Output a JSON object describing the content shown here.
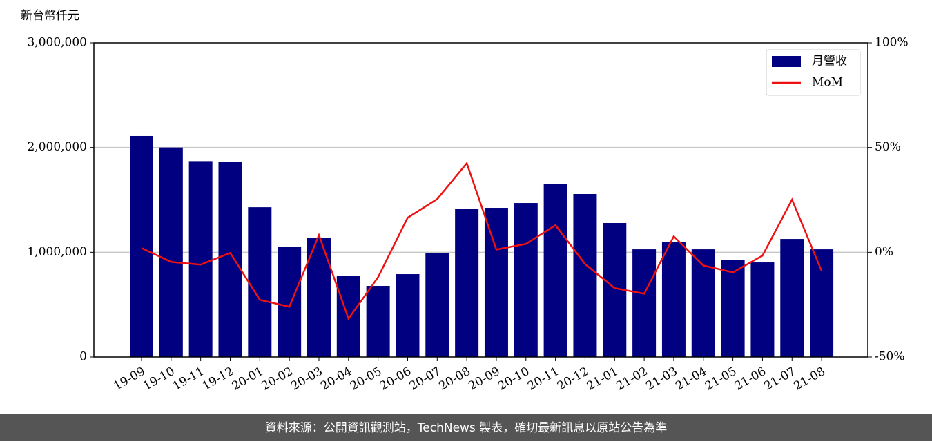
{
  "chart_data": {
    "type": "bar_line",
    "y_label": "新台幣仟元",
    "categories": [
      "19-09",
      "19-10",
      "19-11",
      "19-12",
      "20-01",
      "20-02",
      "20-03",
      "20-04",
      "20-05",
      "20-06",
      "20-07",
      "20-08",
      "20-09",
      "20-10",
      "20-11",
      "20-12",
      "21-01",
      "21-02",
      "21-03",
      "21-04",
      "21-05",
      "21-06",
      "21-07",
      "21-08"
    ],
    "series": [
      {
        "name": "月營收",
        "color": "#000080",
        "type": "bar",
        "values": [
          2110000,
          2000000,
          1870000,
          1866000,
          1430000,
          1055000,
          1140000,
          778000,
          679000,
          791000,
          989000,
          1411000,
          1424000,
          1470000,
          1655000,
          1556000,
          1279000,
          1028000,
          1101000,
          1028000,
          923000,
          903000,
          1127000,
          1028000
        ]
      },
      {
        "name": "MoM",
        "color": "#ee1111",
        "type": "line",
        "axis": "y2",
        "values": [
          2.0,
          -4.6,
          -5.9,
          -0.3,
          -22.7,
          -26.0,
          8.2,
          -31.7,
          -11.9,
          16.5,
          25.4,
          42.5,
          1.3,
          4.0,
          12.9,
          -5.6,
          -17.1,
          -19.8,
          7.6,
          -6.3,
          -9.6,
          -1.6,
          25.1,
          -8.9
        ]
      }
    ],
    "ylim": [
      0,
      3000000
    ],
    "yticks": [
      0,
      {
        "value": 1000000,
        "label": "1,000,000"
      },
      {
        "value": 2000000,
        "label": "2,000,000"
      },
      {
        "value": 3000000,
        "label": "3,000,000"
      }
    ],
    "y2lim": [
      -50,
      100
    ],
    "y2ticks": [
      {
        "value": -50,
        "label": "-50%"
      },
      {
        "value": 0,
        "label": "0%"
      },
      {
        "value": 50,
        "label": "50%"
      },
      {
        "value": 100,
        "label": "100%"
      }
    ],
    "grid": true,
    "legend": "upper right",
    "source": "資料來源：公開資訊觀測站，TechNews 製表，確切最新訊息以原站公告為準"
  }
}
